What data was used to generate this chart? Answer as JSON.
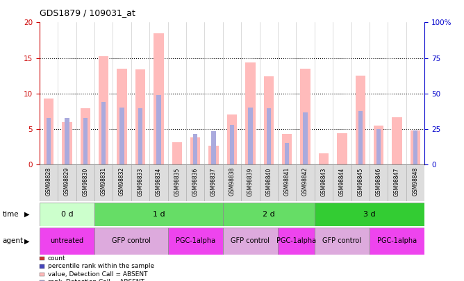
{
  "title": "GDS1879 / 109031_at",
  "samples": [
    "GSM98828",
    "GSM98829",
    "GSM98830",
    "GSM98831",
    "GSM98832",
    "GSM98833",
    "GSM98834",
    "GSM98835",
    "GSM98836",
    "GSM98837",
    "GSM98838",
    "GSM98839",
    "GSM98840",
    "GSM98841",
    "GSM98842",
    "GSM98843",
    "GSM98844",
    "GSM98845",
    "GSM98846",
    "GSM98847",
    "GSM98848"
  ],
  "count_values": [
    9.3,
    6.0,
    7.9,
    15.2,
    13.5,
    13.4,
    18.5,
    3.1,
    3.8,
    2.6,
    7.0,
    14.4,
    12.4,
    4.3,
    13.5,
    1.6,
    4.4,
    12.5,
    5.5,
    6.6,
    4.8
  ],
  "rank_values": [
    32.5,
    32.5,
    32.5,
    44.0,
    40.0,
    39.5,
    49.0,
    null,
    21.5,
    23.5,
    28.0,
    40.0,
    39.5,
    15.0,
    36.5,
    null,
    null,
    37.5,
    25.0,
    null,
    24.0
  ],
  "ylim_left": [
    0,
    20
  ],
  "ylim_right": [
    0,
    100
  ],
  "yticks_left": [
    0,
    5,
    10,
    15,
    20
  ],
  "yticks_right": [
    0,
    25,
    50,
    75,
    100
  ],
  "time_data": [
    {
      "label": "0 d",
      "start": 0,
      "end": 3,
      "color": "#ccffcc"
    },
    {
      "label": "1 d",
      "start": 3,
      "end": 10,
      "color": "#66dd66"
    },
    {
      "label": "2 d",
      "start": 10,
      "end": 15,
      "color": "#66dd66"
    },
    {
      "label": "3 d",
      "start": 15,
      "end": 21,
      "color": "#33cc33"
    }
  ],
  "agent_data": [
    {
      "label": "untreated",
      "start": 0,
      "end": 3,
      "color": "#ee44ee"
    },
    {
      "label": "GFP control",
      "start": 3,
      "end": 7,
      "color": "#ddaadd"
    },
    {
      "label": "PGC-1alpha",
      "start": 7,
      "end": 10,
      "color": "#ee44ee"
    },
    {
      "label": "GFP control",
      "start": 10,
      "end": 13,
      "color": "#ddaadd"
    },
    {
      "label": "PGC-1alpha",
      "start": 13,
      "end": 15,
      "color": "#ee44ee"
    },
    {
      "label": "GFP control",
      "start": 15,
      "end": 18,
      "color": "#ddaadd"
    },
    {
      "label": "PGC-1alpha",
      "start": 18,
      "end": 21,
      "color": "#ee44ee"
    }
  ],
  "bar_color_absent_count": "#ffbbbb",
  "bar_color_absent_rank": "#aaaadd",
  "left_label_color": "#cc0000",
  "right_label_color": "#0000cc",
  "legend_items": [
    {
      "color": "#cc3333",
      "label": "count"
    },
    {
      "color": "#4444bb",
      "label": "percentile rank within the sample"
    },
    {
      "color": "#ffbbbb",
      "label": "value, Detection Call = ABSENT"
    },
    {
      "color": "#aaaadd",
      "label": "rank, Detection Call = ABSENT"
    }
  ]
}
